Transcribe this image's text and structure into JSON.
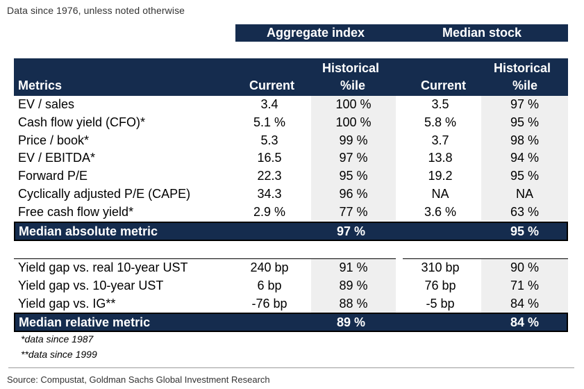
{
  "subtitle": "Data since 1976, unless noted otherwise",
  "groups": {
    "aggregate": "Aggregate index",
    "median": "Median stock"
  },
  "headers": {
    "metrics": "Metrics",
    "current": "Current",
    "historical_1": "Historical",
    "historical_2": "%ile"
  },
  "absolute_rows": [
    {
      "metric": "EV / sales",
      "agg_current": "3.4",
      "agg_pct": "100 %",
      "med_current": "3.5",
      "med_pct": "97 %"
    },
    {
      "metric": "Cash flow yield (CFO)*",
      "agg_current": "5.1 %",
      "agg_pct": "100 %",
      "med_current": "5.8 %",
      "med_pct": "95 %"
    },
    {
      "metric": "Price / book*",
      "agg_current": "5.3",
      "agg_pct": "99 %",
      "med_current": "3.7",
      "med_pct": "98 %"
    },
    {
      "metric": "EV / EBITDA*",
      "agg_current": "16.5",
      "agg_pct": "97 %",
      "med_current": "13.8",
      "med_pct": "94 %"
    },
    {
      "metric": "Forward P/E",
      "agg_current": "22.3",
      "agg_pct": "95 %",
      "med_current": "19.2",
      "med_pct": "95 %"
    },
    {
      "metric": "Cyclically adjusted P/E (CAPE)",
      "agg_current": "34.3",
      "agg_pct": "96 %",
      "med_current": "NA",
      "med_pct": "NA"
    },
    {
      "metric": "Free cash flow yield*",
      "agg_current": "2.9 %",
      "agg_pct": "77 %",
      "med_current": "3.6 %",
      "med_pct": "63 %"
    }
  ],
  "absolute_summary": {
    "label": "Median absolute metric",
    "agg_pct": "97 %",
    "med_pct": "95 %"
  },
  "relative_rows": [
    {
      "metric": "Yield gap vs. real 10-year UST",
      "agg_current": "240 bp",
      "agg_pct": "91 %",
      "med_current": "310 bp",
      "med_pct": "90 %"
    },
    {
      "metric": "Yield gap vs. 10-year UST",
      "agg_current": "6 bp",
      "agg_pct": "89 %",
      "med_current": "76 bp",
      "med_pct": "71 %"
    },
    {
      "metric": "Yield gap vs. IG**",
      "agg_current": "-76 bp",
      "agg_pct": "88 %",
      "med_current": "-5 bp",
      "med_pct": "84 %"
    }
  ],
  "relative_summary": {
    "label": "Median relative metric",
    "agg_pct": "89 %",
    "med_pct": "84 %"
  },
  "footnotes": [
    "*data since 1987",
    "**data since 1999"
  ],
  "source": "Source: Compustat, Goldman Sachs Global Investment Research"
}
